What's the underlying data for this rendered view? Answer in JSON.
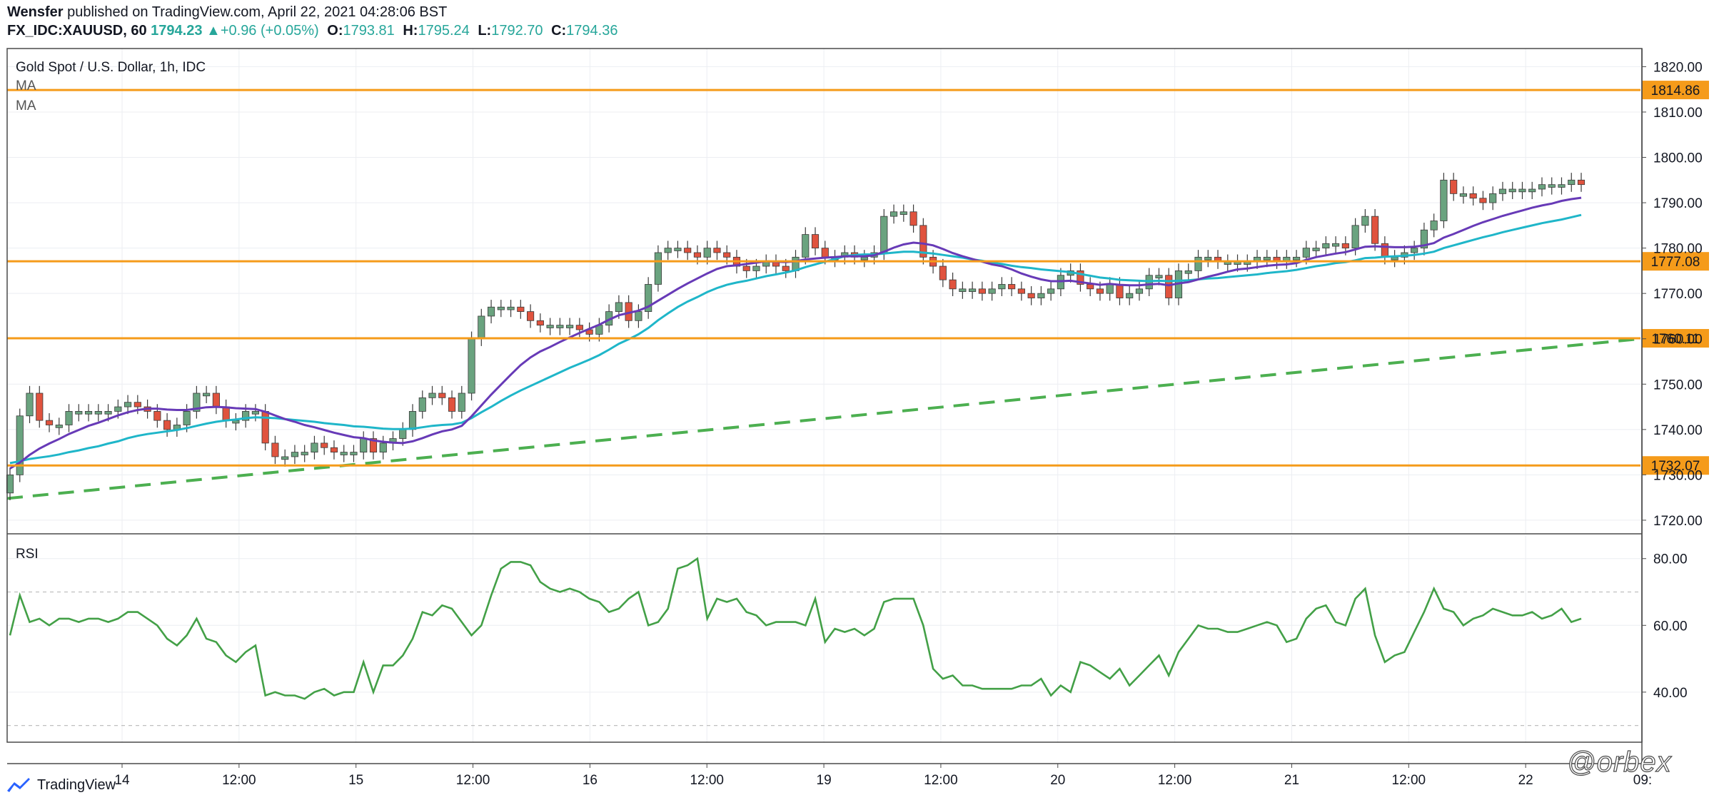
{
  "header": {
    "author": "Wensfer",
    "published_text": "published on TradingView.com, April 22, 2021 04:28:06 BST",
    "symbol": "FX_IDC:XAUUSD, 60",
    "last_price": "1794.23",
    "change": "+0.96 (+0.05%)",
    "open_label": "O:",
    "open_value": "1793.81",
    "high_label": "H:",
    "high_value": "1795.24",
    "low_label": "L:",
    "low_value": "1792.70",
    "close_label": "C:",
    "close_value": "1794.36"
  },
  "legend": {
    "title": "Gold Spot / U.S. Dollar, 1h, IDC",
    "ma1": "MA",
    "ma2": "MA",
    "rsi": "RSI"
  },
  "footer": {
    "brand": "TradingView",
    "watermark": "@orbex"
  },
  "colors": {
    "up": "#6aa37f",
    "down": "#e0533e",
    "ma_fast": "#673ab7",
    "ma_slow": "#1fb6c9",
    "level": "#f59b1a",
    "trend": "#4caf50",
    "rsi": "#43a047",
    "grid": "#eceef2"
  },
  "chart_data": [
    {
      "type": "candlestick",
      "title": "Gold Spot / U.S. Dollar, 1h, IDC",
      "ylim": [
        1717,
        1824
      ],
      "y_ticks": [
        1720,
        1730,
        1740,
        1750,
        1760,
        1770,
        1780,
        1790,
        1800,
        1810,
        1820
      ],
      "y_tick_labels": [
        "1720.00",
        "1730.00",
        "1740.00",
        "1750.00",
        "1760.00",
        "1770.00",
        "1780.00",
        "1790.00",
        "1800.00",
        "1810.00",
        "1820.00"
      ],
      "x_tick_labels": [
        "14",
        "12:00",
        "15",
        "12:00",
        "16",
        "12:00",
        "19",
        "12:00",
        "20",
        "12:00",
        "21",
        "12:00",
        "22",
        "09:"
      ],
      "horizontal_levels": [
        {
          "value": 1814.86,
          "label": "1814.86"
        },
        {
          "value": 1777.08,
          "label": "1777.08"
        },
        {
          "value": 1760.11,
          "label": "1760.11"
        },
        {
          "value": 1732.07,
          "label": "1732.07"
        }
      ],
      "trendline": {
        "start": 1724.8,
        "end": 1760.0,
        "style": "dashed"
      },
      "candles_close": [
        1730,
        1743,
        1748,
        1742,
        1741,
        1741,
        1744,
        1744,
        1744,
        1744,
        1744,
        1745,
        1746,
        1745,
        1744,
        1742,
        1740,
        1741,
        1744,
        1748,
        1748,
        1745,
        1742,
        1742,
        1744,
        1744,
        1737,
        1734,
        1734,
        1735,
        1735,
        1737,
        1736,
        1735,
        1735,
        1735,
        1738,
        1735,
        1737,
        1738,
        1740,
        1744,
        1747,
        1748,
        1747,
        1744,
        1748,
        1760,
        1765,
        1767,
        1767,
        1767,
        1766,
        1764,
        1763,
        1763,
        1763,
        1763,
        1762,
        1761,
        1763,
        1766,
        1768,
        1764,
        1766,
        1772,
        1779,
        1780,
        1780,
        1779,
        1778,
        1780,
        1779,
        1778,
        1776,
        1775,
        1776,
        1777,
        1776,
        1775,
        1778,
        1783,
        1780,
        1778,
        1778,
        1779,
        1778,
        1778,
        1779,
        1787,
        1788,
        1788,
        1785,
        1778,
        1776,
        1773,
        1771,
        1771,
        1771,
        1770,
        1771,
        1772,
        1771,
        1770,
        1769,
        1770,
        1771,
        1774,
        1775,
        1772,
        1771,
        1770,
        1772,
        1769,
        1770,
        1771,
        1774,
        1774,
        1769,
        1775,
        1775,
        1778,
        1778,
        1777,
        1777,
        1777,
        1777,
        1778,
        1778,
        1777,
        1778,
        1778,
        1780,
        1780,
        1781,
        1781,
        1780,
        1785,
        1787,
        1781,
        1778,
        1778,
        1779,
        1780,
        1784,
        1786,
        1795,
        1792,
        1792,
        1791,
        1790,
        1792,
        1793,
        1793,
        1793,
        1793,
        1794,
        1794,
        1794,
        1795,
        1794
      ],
      "ma_fast": [
        1731.4,
        1732.7,
        1734.4,
        1735.8,
        1736.9,
        1737.9,
        1739.0,
        1739.9,
        1740.8,
        1741.5,
        1742.3,
        1743.1,
        1743.8,
        1744.3,
        1744.6,
        1744.6,
        1744.4,
        1744.3,
        1744.3,
        1744.6,
        1744.9,
        1745.0,
        1744.9,
        1744.7,
        1744.6,
        1744.5,
        1743.9,
        1743.1,
        1742.3,
        1741.7,
        1741.0,
        1740.5,
        1739.9,
        1739.3,
        1738.8,
        1738.3,
        1738.1,
        1737.6,
        1737.3,
        1737.1,
        1737.0,
        1737.4,
        1738.1,
        1738.9,
        1739.6,
        1740.0,
        1740.8,
        1742.9,
        1745.3,
        1747.7,
        1749.9,
        1752.1,
        1754.2,
        1755.9,
        1757.2,
        1758.2,
        1759.3,
        1760.3,
        1761.3,
        1762.2,
        1763.1,
        1764.2,
        1765.2,
        1765.7,
        1766.2,
        1767.1,
        1768.4,
        1769.7,
        1771.0,
        1772.2,
        1773.3,
        1774.4,
        1775.4,
        1776.0,
        1776.2,
        1776.5,
        1776.8,
        1777.1,
        1777.0,
        1776.9,
        1777.1,
        1777.5,
        1777.7,
        1777.9,
        1778.0,
        1778.2,
        1778.2,
        1778.2,
        1778.4,
        1779.2,
        1780.1,
        1780.8,
        1781.2,
        1781.0,
        1780.6,
        1779.8,
        1778.9,
        1778.2,
        1777.6,
        1777.0,
        1776.4,
        1776.0,
        1775.3,
        1774.4,
        1773.7,
        1773.1,
        1772.7,
        1772.7,
        1772.8,
        1772.5,
        1772.2,
        1771.9,
        1772.1,
        1771.9,
        1771.8,
        1771.8,
        1772.0,
        1772.1,
        1771.8,
        1772.2,
        1772.5,
        1773.1,
        1773.7,
        1774.2,
        1774.8,
        1775.3,
        1775.5,
        1775.8,
        1776.1,
        1776.3,
        1776.4,
        1776.7,
        1777.4,
        1778.0,
        1778.4,
        1778.8,
        1779.1,
        1779.7,
        1780.3,
        1780.4,
        1780.3,
        1780.2,
        1780.2,
        1780.3,
        1780.6,
        1781.1,
        1782.3,
        1783.1,
        1784.0,
        1784.9,
        1785.7,
        1786.4,
        1787.1,
        1787.7,
        1788.3,
        1788.9,
        1789.4,
        1789.8,
        1790.4,
        1790.8,
        1791.1
      ],
      "ma_slow": [
        1732.6,
        1733.0,
        1733.5,
        1733.8,
        1734.1,
        1734.5,
        1735.0,
        1735.4,
        1735.9,
        1736.3,
        1736.9,
        1737.4,
        1738.1,
        1738.6,
        1739.0,
        1739.3,
        1739.6,
        1739.9,
        1740.3,
        1740.8,
        1741.3,
        1741.7,
        1742.0,
        1742.2,
        1742.5,
        1742.7,
        1742.6,
        1742.5,
        1742.3,
        1742.1,
        1741.9,
        1741.7,
        1741.4,
        1741.2,
        1741.0,
        1740.7,
        1740.6,
        1740.4,
        1740.2,
        1740.1,
        1740.1,
        1740.2,
        1740.5,
        1740.8,
        1741.0,
        1741.1,
        1741.5,
        1742.5,
        1743.8,
        1745.0,
        1746.3,
        1747.5,
        1748.6,
        1749.6,
        1750.6,
        1751.6,
        1752.6,
        1753.6,
        1754.5,
        1755.4,
        1756.4,
        1757.6,
        1758.9,
        1759.9,
        1761.0,
        1762.4,
        1764.1,
        1765.6,
        1767.0,
        1768.2,
        1769.2,
        1770.3,
        1771.2,
        1771.9,
        1772.4,
        1772.8,
        1773.3,
        1773.8,
        1774.2,
        1774.6,
        1775.1,
        1775.8,
        1776.4,
        1777.0,
        1777.6,
        1778.2,
        1778.5,
        1778.6,
        1778.6,
        1778.8,
        1779.0,
        1779.2,
        1779.2,
        1779.0,
        1778.8,
        1778.5,
        1778.2,
        1777.9,
        1777.5,
        1777.2,
        1776.8,
        1776.5,
        1776.1,
        1775.8,
        1775.6,
        1775.3,
        1775.1,
        1774.9,
        1774.7,
        1774.3,
        1773.9,
        1773.5,
        1773.3,
        1773.0,
        1772.9,
        1772.8,
        1772.7,
        1772.8,
        1772.7,
        1772.8,
        1772.9,
        1773.1,
        1773.3,
        1773.4,
        1773.6,
        1773.8,
        1774.0,
        1774.2,
        1774.5,
        1774.7,
        1774.9,
        1775.2,
        1775.6,
        1776.0,
        1776.3,
        1776.7,
        1776.9,
        1777.3,
        1777.8,
        1777.9,
        1778.1,
        1778.2,
        1778.3,
        1778.5,
        1778.8,
        1779.2,
        1780.0,
        1780.6,
        1781.2,
        1781.8,
        1782.4,
        1782.9,
        1783.5,
        1784.0,
        1784.5,
        1785.0,
        1785.5,
        1785.9,
        1786.3,
        1786.8,
        1787.3
      ]
    },
    {
      "type": "line",
      "title": "RSI",
      "ylim": [
        25,
        87
      ],
      "y_ticks": [
        40,
        60,
        80
      ],
      "y_tick_labels": [
        "40.00",
        "60.00",
        "80.00"
      ],
      "bands": [
        30,
        70
      ],
      "series": [
        {
          "name": "RSI",
          "values": [
            57,
            69,
            61,
            62,
            60,
            62,
            62,
            61,
            62,
            62,
            61,
            62,
            64,
            64,
            62,
            60,
            56,
            54,
            57,
            62,
            56,
            55,
            51,
            49,
            52,
            54,
            39,
            40,
            39,
            39,
            38,
            40,
            41,
            39,
            40,
            40,
            49,
            40,
            48,
            48,
            51,
            56,
            64,
            63,
            66,
            65,
            61,
            57,
            60,
            69,
            77,
            79,
            79,
            78,
            73,
            71,
            70,
            71,
            70,
            68,
            67,
            64,
            65,
            68,
            70,
            60,
            61,
            65,
            77,
            78,
            80,
            62,
            68,
            67,
            68,
            64,
            63,
            60,
            61,
            61,
            61,
            60,
            68,
            55,
            59,
            58,
            59,
            57,
            59,
            67,
            68,
            68,
            68,
            60,
            47,
            44,
            45,
            42,
            42,
            41,
            41,
            41,
            41,
            42,
            42,
            44,
            39,
            42,
            40,
            49,
            48,
            46,
            44,
            47,
            42,
            45,
            48,
            51,
            45,
            52,
            56,
            60,
            59,
            59,
            58,
            58,
            59,
            60,
            61,
            60,
            55,
            56,
            62,
            65,
            66,
            61,
            60,
            68,
            71,
            57,
            49,
            51,
            52,
            58,
            64,
            71,
            65,
            64,
            60,
            62,
            63,
            65,
            64,
            63,
            63,
            64,
            62,
            63,
            65,
            61,
            62
          ]
        }
      ]
    }
  ]
}
